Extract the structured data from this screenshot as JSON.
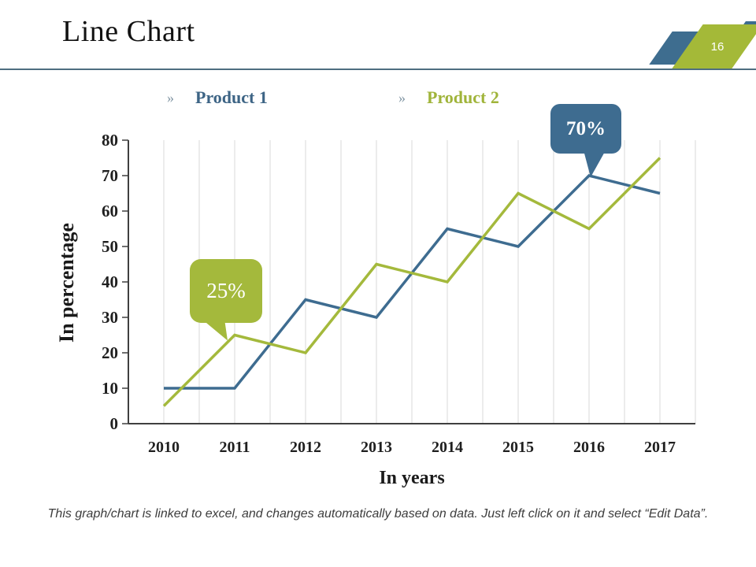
{
  "slide": {
    "title": "Line Chart",
    "page_number": "16",
    "footer": "This graph/chart is linked to excel, and changes automatically based on data. Just left click on it and select “Edit Data”."
  },
  "legend": [
    {
      "bullet": "»",
      "label": "Product 1",
      "color": "#3d6485"
    },
    {
      "bullet": "»",
      "label": "Product 2",
      "color": "#a0b43a"
    }
  ],
  "colors": {
    "accent_blue": "#3e6c90",
    "accent_green": "#a4b93c",
    "title_rule": "#4e6e80",
    "gridline": "#d9d9d9",
    "axis": "#3f3f3f"
  },
  "chart_data": {
    "type": "line",
    "title": "Line Chart",
    "x": [
      "2010",
      "2011",
      "2012",
      "2013",
      "2014",
      "2015",
      "2016",
      "2017"
    ],
    "series": [
      {
        "name": "Product 1",
        "color": "#3e6c90",
        "values": [
          10,
          10,
          35,
          30,
          55,
          50,
          70,
          65
        ]
      },
      {
        "name": "Product 2",
        "color": "#a4b93c",
        "values": [
          5,
          25,
          20,
          45,
          40,
          65,
          55,
          75
        ]
      }
    ],
    "xlabel": "In years",
    "ylabel": "In percentage",
    "ylim": [
      0,
      80
    ],
    "yticks": [
      0,
      10,
      20,
      30,
      40,
      50,
      60,
      70,
      80
    ],
    "grid": "vertical (major at years, minor at half-years)",
    "legend_position": "top",
    "callouts": [
      {
        "text": "25%",
        "series": "Product 2",
        "x": "2011",
        "value": 25,
        "color": "#a4b93c"
      },
      {
        "text": "70%",
        "series": "Product 1",
        "x": "2016",
        "value": 70,
        "color": "#3e6c90"
      }
    ]
  }
}
